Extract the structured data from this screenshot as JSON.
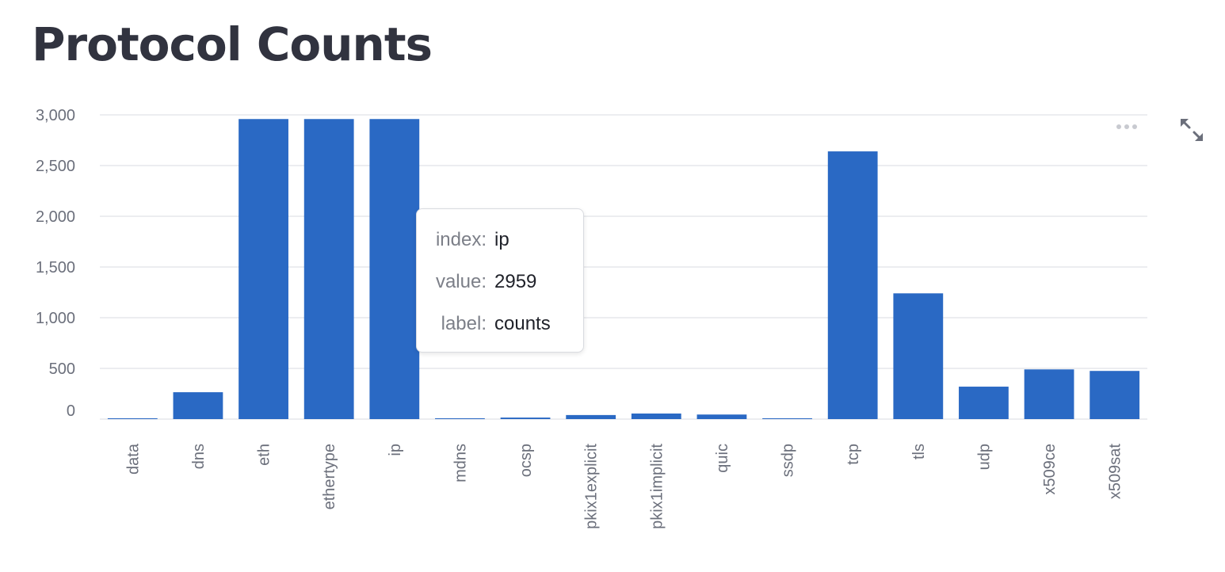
{
  "page": {
    "title": "Protocol Counts"
  },
  "colors": {
    "bar": "#2a69c4",
    "grid": "#e6e7eb",
    "tick_label": "#6b6f7b",
    "title": "#31333f"
  },
  "icons": {
    "more": "more-horizontal-icon",
    "expand": "expand-icon"
  },
  "tooltip": {
    "rows": [
      {
        "key": "index:",
        "value": "ip"
      },
      {
        "key": "value:",
        "value": "2959"
      },
      {
        "key": "label:",
        "value": "counts"
      }
    ]
  },
  "chart_data": {
    "type": "bar",
    "title": "Protocol Counts",
    "xlabel": "",
    "ylabel": "",
    "categories": [
      "data",
      "dns",
      "eth",
      "ethertype",
      "ip",
      "mdns",
      "ocsp",
      "pkix1explicit",
      "pkix1implicit",
      "quic",
      "ssdp",
      "tcp",
      "tls",
      "udp",
      "x509ce",
      "x509sat"
    ],
    "series": [
      {
        "values": [
          3,
          265,
          2959,
          2959,
          2959,
          3,
          15,
          40,
          55,
          45,
          5,
          2640,
          1240,
          320,
          490,
          475
        ]
      }
    ],
    "ylim": [
      0,
      3000
    ],
    "yticks": [
      0,
      500,
      1000,
      1500,
      2000,
      2500,
      3000
    ],
    "ytick_labels": [
      "0",
      "500",
      "1,000",
      "1,500",
      "2,000",
      "2,500",
      "3,000"
    ],
    "grid": true,
    "legend": "none",
    "highlighted_category": "ip"
  }
}
